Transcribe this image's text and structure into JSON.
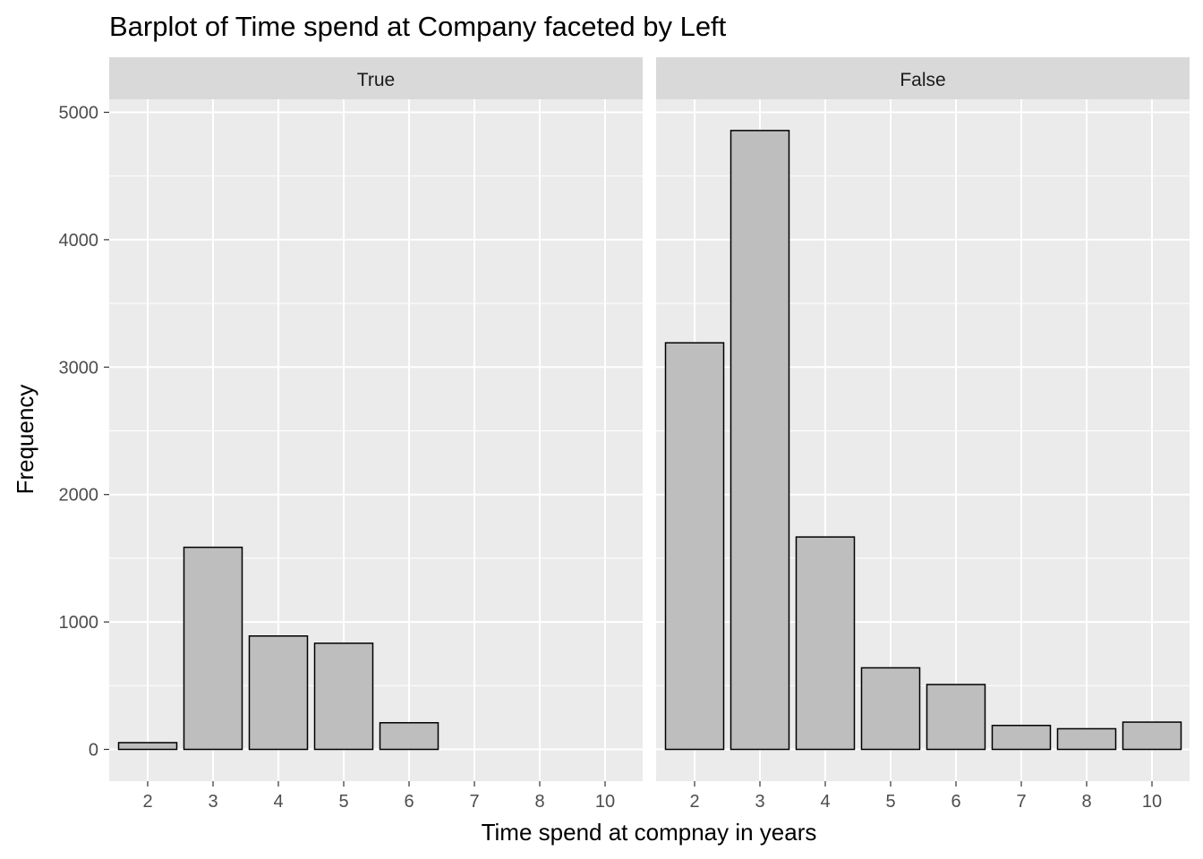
{
  "chart_data": {
    "type": "bar",
    "title": "Barplot of Time spend at Company faceted by Left",
    "xlabel": "Time spend at compnay in years",
    "ylabel": "Frequency",
    "categories": [
      "2",
      "3",
      "4",
      "5",
      "6",
      "7",
      "8",
      "10"
    ],
    "y_ticks": [
      "0",
      "1000",
      "2000",
      "3000",
      "4000",
      "5000"
    ],
    "ylim": [
      0,
      5000
    ],
    "grid": true,
    "bar_fill": "#bebebe",
    "bar_stroke": "#000000",
    "panel_background": "#ebebeb",
    "strip_background": "#d9d9d9",
    "facets": [
      {
        "label": "True",
        "values": [
          53,
          1586,
          890,
          833,
          209,
          0,
          0,
          0
        ]
      },
      {
        "label": "False",
        "values": [
          3191,
          4857,
          1667,
          640,
          509,
          188,
          162,
          214
        ]
      }
    ]
  }
}
